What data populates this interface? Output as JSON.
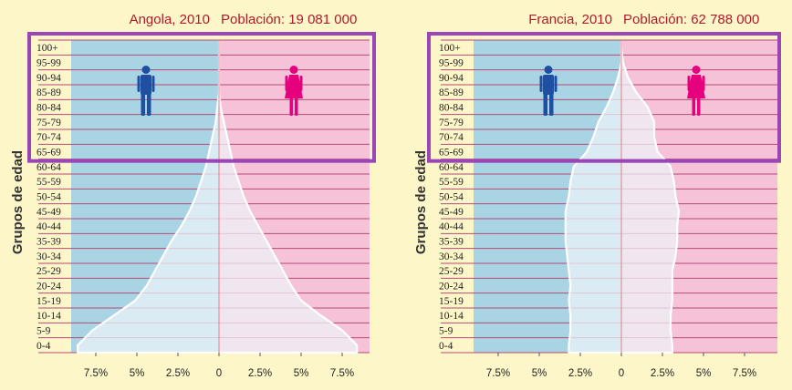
{
  "chart_data": [
    {
      "type": "area",
      "title_place": "Angola, 2010",
      "title_population": "Población: 19 081 000",
      "ylabel": "Grupos de edad",
      "xticks": [
        "7.5%",
        "5%",
        "2.5%",
        "0",
        "2.5%",
        "5%",
        "7.5%"
      ],
      "xlim": [
        -9.0,
        9.0
      ],
      "age_groups": [
        "0-4",
        "5-9",
        "10-14",
        "15-19",
        "20-24",
        "25-29",
        "30-34",
        "35-39",
        "40-44",
        "45-49",
        "50-54",
        "55-59",
        "60-64",
        "65-69",
        "70-74",
        "75-79",
        "80-84",
        "85-89",
        "90-94",
        "95-99",
        "100+"
      ],
      "series": [
        {
          "side": "male",
          "values": [
            8.6,
            7.7,
            6.4,
            5.1,
            4.4,
            3.9,
            3.4,
            2.9,
            2.3,
            1.8,
            1.4,
            1.1,
            0.8,
            0.6,
            0.4,
            0.2,
            0.1,
            0.0,
            0.0,
            0.0,
            0.0
          ]
        },
        {
          "side": "female",
          "values": [
            8.4,
            7.5,
            6.2,
            5.0,
            4.4,
            3.9,
            3.4,
            2.9,
            2.4,
            1.9,
            1.5,
            1.2,
            0.9,
            0.7,
            0.5,
            0.3,
            0.1,
            0.0,
            0.0,
            0.0,
            0.0
          ]
        }
      ],
      "colors": {
        "male": "#a9d4e4",
        "female": "#f5c2d8",
        "male_icon": "#1f4fa0",
        "female_icon": "#e5007e"
      },
      "highlight": {
        "from": "65-69",
        "to": "100+",
        "color": "#9a45b8"
      }
    },
    {
      "type": "area",
      "title_place": "Francia, 2010",
      "title_population": "Población: 62 788 000",
      "ylabel": "Grupos de edad",
      "xticks": [
        "7.5%",
        "5%",
        "2.5%",
        "0",
        "2.5%",
        "5%",
        "7.5%"
      ],
      "xlim": [
        -9.0,
        9.0
      ],
      "age_groups": [
        "0-4",
        "5-9",
        "10-14",
        "15-19",
        "20-24",
        "25-29",
        "30-34",
        "35-39",
        "40-44",
        "45-49",
        "50-54",
        "55-59",
        "60-64",
        "65-69",
        "70-74",
        "75-79",
        "80-84",
        "85-89",
        "90-94",
        "95-99",
        "100+"
      ],
      "series": [
        {
          "side": "male",
          "values": [
            3.2,
            3.1,
            3.1,
            3.2,
            3.1,
            3.2,
            3.3,
            3.4,
            3.4,
            3.4,
            3.2,
            3.1,
            2.9,
            2.1,
            1.7,
            1.4,
            0.9,
            0.5,
            0.2,
            0.0,
            0.0
          ]
        },
        {
          "side": "female",
          "values": [
            3.1,
            3.0,
            3.0,
            3.1,
            3.1,
            3.1,
            3.3,
            3.4,
            3.4,
            3.5,
            3.3,
            3.2,
            3.0,
            2.2,
            2.0,
            2.0,
            1.6,
            0.9,
            0.4,
            0.1,
            0.0
          ]
        }
      ],
      "colors": {
        "male": "#a9d4e4",
        "female": "#f5c2d8",
        "male_icon": "#1f4fa0",
        "female_icon": "#e5007e"
      },
      "highlight": {
        "from": "65-69",
        "to": "100+",
        "color": "#9a45b8"
      }
    }
  ]
}
